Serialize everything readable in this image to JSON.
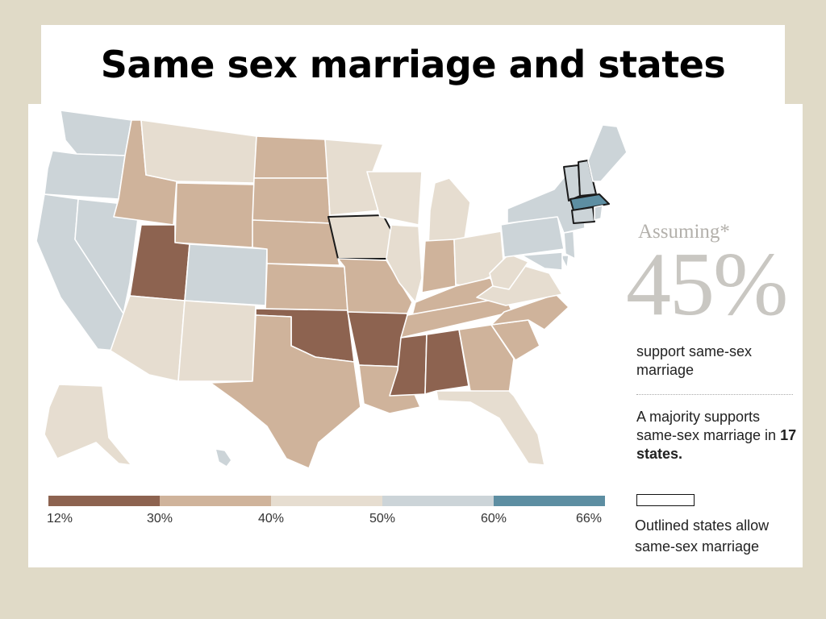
{
  "slide": {
    "title": "Same sex marriage and states"
  },
  "map": {
    "assuming_label": "Assuming*",
    "headline_percent": "45%",
    "headline_caption": "support same-sex marriage",
    "majority_text_prefix": "A majority supports same-sex marriage in",
    "majority_states": "17 states.",
    "outline_legend": "Outlined states allow same-sex marriage"
  },
  "color_scale": {
    "breaks": [
      "12%",
      "30%",
      "40%",
      "50%",
      "60%",
      "66%"
    ],
    "colors": [
      "#8d6350",
      "#cfb39b",
      "#e6ddd0",
      "#ccd4d8",
      "#5d8ea2"
    ]
  },
  "states": [
    {
      "name": "Washington",
      "band": 3
    },
    {
      "name": "Oregon",
      "band": 3
    },
    {
      "name": "California",
      "band": 3
    },
    {
      "name": "Nevada",
      "band": 3
    },
    {
      "name": "Idaho",
      "band": 1
    },
    {
      "name": "Montana",
      "band": 2
    },
    {
      "name": "Wyoming",
      "band": 1
    },
    {
      "name": "Utah",
      "band": 0
    },
    {
      "name": "Colorado",
      "band": 3
    },
    {
      "name": "Arizona",
      "band": 2
    },
    {
      "name": "New Mexico",
      "band": 2
    },
    {
      "name": "North Dakota",
      "band": 1
    },
    {
      "name": "South Dakota",
      "band": 1
    },
    {
      "name": "Nebraska",
      "band": 1
    },
    {
      "name": "Kansas",
      "band": 1
    },
    {
      "name": "Oklahoma",
      "band": 0
    },
    {
      "name": "Texas",
      "band": 1
    },
    {
      "name": "Minnesota",
      "band": 2
    },
    {
      "name": "Iowa",
      "band": 2,
      "outlined": true
    },
    {
      "name": "Missouri",
      "band": 1
    },
    {
      "name": "Arkansas",
      "band": 0
    },
    {
      "name": "Louisiana",
      "band": 1
    },
    {
      "name": "Wisconsin",
      "band": 2
    },
    {
      "name": "Illinois",
      "band": 2
    },
    {
      "name": "Michigan",
      "band": 2
    },
    {
      "name": "Indiana",
      "band": 1
    },
    {
      "name": "Ohio",
      "band": 2
    },
    {
      "name": "Kentucky",
      "band": 1
    },
    {
      "name": "Tennessee",
      "band": 1
    },
    {
      "name": "Mississippi",
      "band": 0
    },
    {
      "name": "Alabama",
      "band": 0
    },
    {
      "name": "Georgia",
      "band": 1
    },
    {
      "name": "Florida",
      "band": 2
    },
    {
      "name": "South Carolina",
      "band": 1
    },
    {
      "name": "North Carolina",
      "band": 1
    },
    {
      "name": "Virginia",
      "band": 2
    },
    {
      "name": "West Virginia",
      "band": 2
    },
    {
      "name": "Pennsylvania",
      "band": 3
    },
    {
      "name": "New York",
      "band": 3
    },
    {
      "name": "Vermont",
      "band": 3,
      "outlined": true
    },
    {
      "name": "New Hampshire",
      "band": 3,
      "outlined": true
    },
    {
      "name": "Maine",
      "band": 3
    },
    {
      "name": "Massachusetts",
      "band": 4,
      "outlined": true
    },
    {
      "name": "Connecticut",
      "band": 3,
      "outlined": true
    },
    {
      "name": "Rhode Island",
      "band": 3
    },
    {
      "name": "New Jersey",
      "band": 3
    },
    {
      "name": "Delaware",
      "band": 3
    },
    {
      "name": "Maryland",
      "band": 3
    },
    {
      "name": "Alaska",
      "band": 2
    },
    {
      "name": "Hawaii",
      "band": 3
    }
  ]
}
